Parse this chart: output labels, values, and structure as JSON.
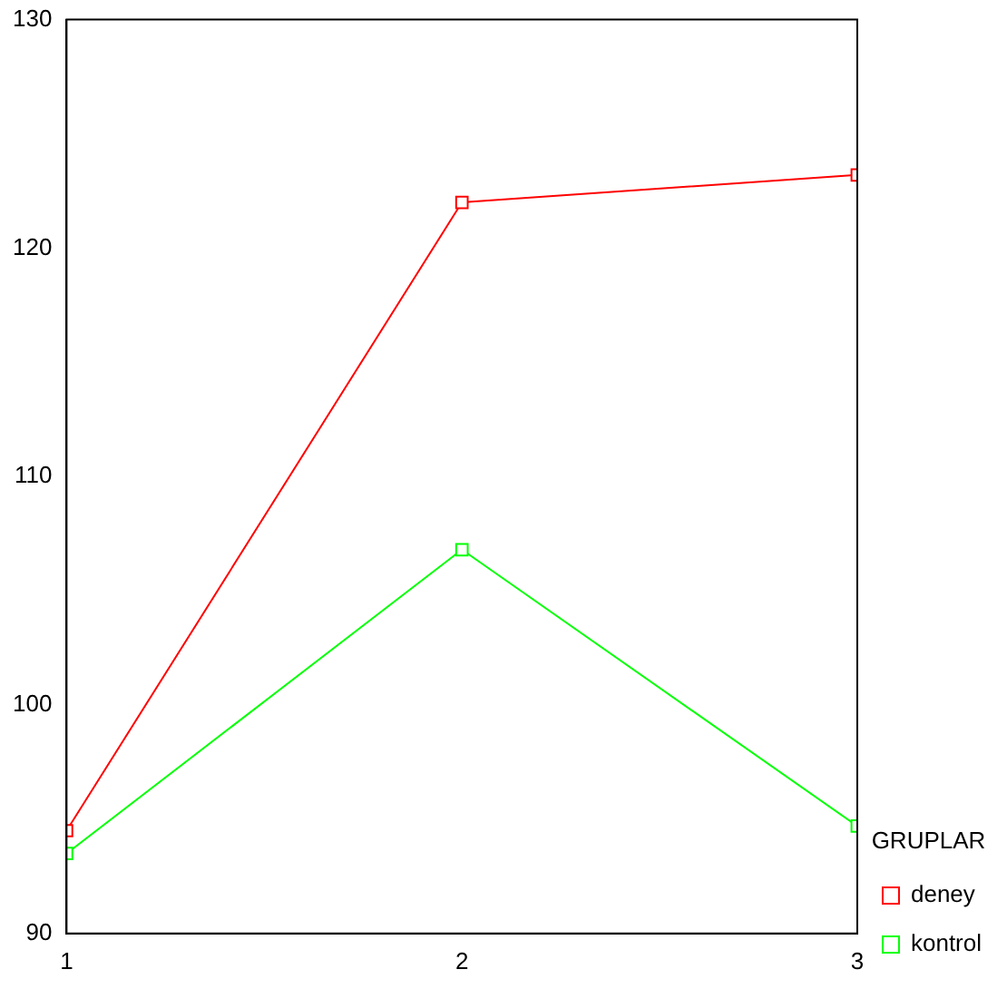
{
  "chart_data": {
    "type": "line",
    "x": [
      1,
      2,
      3
    ],
    "xlim": [
      1,
      3
    ],
    "xticks": [
      1,
      2,
      3
    ],
    "ylim": [
      90,
      130
    ],
    "yticks": [
      90,
      100,
      110,
      120,
      130
    ],
    "grid": false,
    "legend": "right",
    "legend_title": "GRUPLAR",
    "marker": "square",
    "line_style": "solid",
    "series": [
      {
        "name": "deney",
        "color": "#ff0000",
        "values": [
          94.5,
          122.0,
          123.2
        ]
      },
      {
        "name": "kontrol",
        "color": "#00ff00",
        "values": [
          93.5,
          106.8,
          94.7
        ]
      }
    ]
  }
}
